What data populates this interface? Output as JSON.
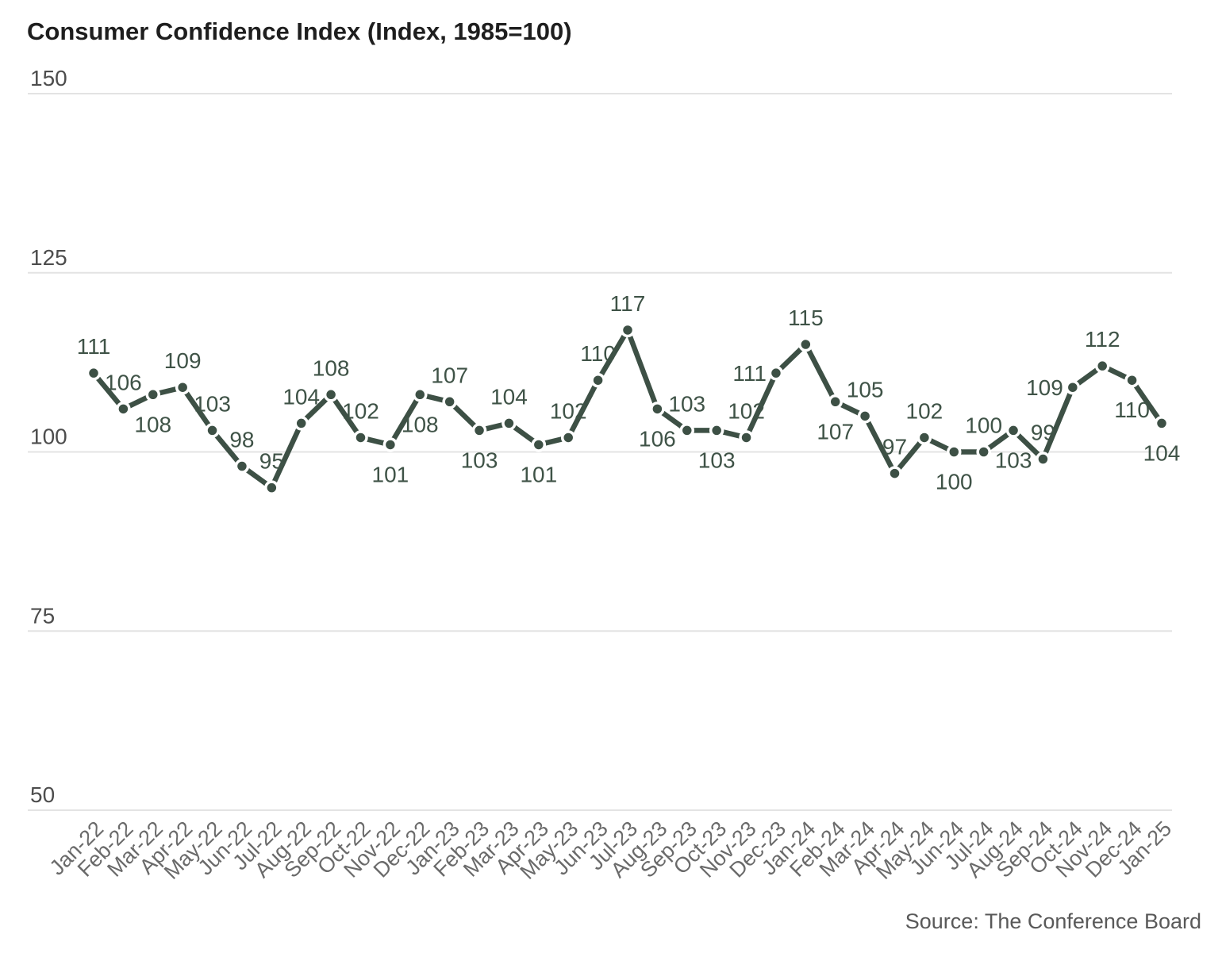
{
  "title": "Consumer Confidence Index (Index, 1985=100)",
  "source": "Source: The Conference Board",
  "colors": {
    "line": "#3d5045",
    "marker": "#3d5045",
    "marker_halo": "#ffffff",
    "data_label": "#3f5347",
    "grid": "#e3e3e3",
    "y_tick_label": "#4d4d4d",
    "x_tick_label": "#6a6a6a",
    "title": "#1e1e1e",
    "source": "#595959",
    "background": "#ffffff"
  },
  "chart_data": {
    "type": "line",
    "title": "Consumer Confidence Index (Index, 1985=100)",
    "source": "Source: The Conference Board",
    "x": [
      "Jan-22",
      "Feb-22",
      "Mar-22",
      "Apr-22",
      "May-22",
      "Jun-22",
      "Jul-22",
      "Aug-22",
      "Sep-22",
      "Oct-22",
      "Nov-22",
      "Dec-22",
      "Jan-23",
      "Feb-23",
      "Mar-23",
      "Apr-23",
      "May-23",
      "Jun-23",
      "Jul-23",
      "Aug-23",
      "Sep-23",
      "Oct-23",
      "Nov-23",
      "Dec-23",
      "Jan-24",
      "Feb-24",
      "Mar-24",
      "Apr-24",
      "May-24",
      "Jun-24",
      "Jul-24",
      "Aug-24",
      "Sep-24",
      "Oct-24",
      "Nov-24",
      "Dec-24",
      "Jan-25"
    ],
    "values": [
      111,
      106,
      108,
      109,
      103,
      98,
      95,
      104,
      108,
      102,
      101,
      108,
      107,
      103,
      104,
      101,
      102,
      110,
      117,
      106,
      103,
      103,
      102,
      111,
      115,
      107,
      105,
      97,
      102,
      100,
      100,
      103,
      99,
      109,
      112,
      110,
      104
    ],
    "label_positions": [
      "above",
      "above",
      "below",
      "above",
      "above",
      "above",
      "above",
      "above",
      "above",
      "above",
      "below",
      "below",
      "above",
      "below",
      "above",
      "below",
      "above",
      "above",
      "above",
      "below",
      "above",
      "below",
      "above",
      "left",
      "above",
      "below",
      "above",
      "above",
      "above",
      "below",
      "above",
      "below",
      "above",
      "left",
      "above",
      "below",
      "below"
    ],
    "y_ticks": [
      150,
      125,
      100,
      75,
      50
    ],
    "ylim": [
      50,
      150
    ],
    "grid": "horizontal",
    "legend": "none",
    "marker": "circle",
    "xlabel": "",
    "ylabel": ""
  }
}
